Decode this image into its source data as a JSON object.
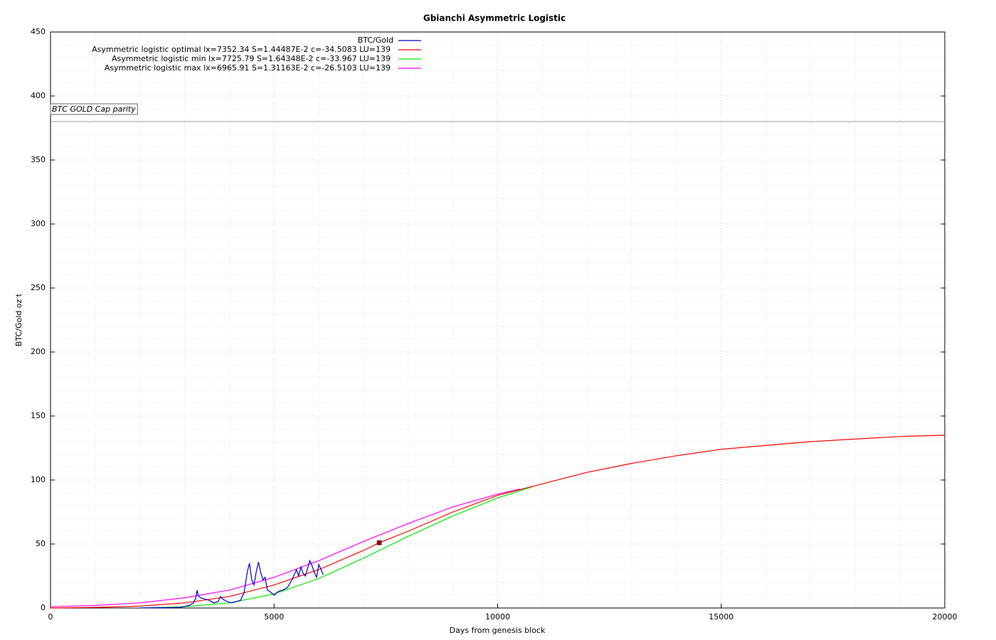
{
  "chart_data": {
    "type": "line",
    "title": "Gbianchi Asymmetric Logistic",
    "x_label": "Days from genesis block",
    "y_label": "BTC/Gold oz t",
    "xlim": [
      0,
      20000
    ],
    "ylim": [
      0,
      450
    ],
    "xticks": [
      0,
      5000,
      10000,
      15000,
      20000
    ],
    "yticks": [
      0,
      50,
      100,
      150,
      200,
      250,
      300,
      350,
      400,
      450
    ],
    "grid": true,
    "legend": "top",
    "series": [
      {
        "name": "BTC/Gold",
        "color": "#0000cc",
        "x": [
          2000,
          2500,
          2900,
          3100,
          3200,
          3250,
          3280,
          3300,
          3350,
          3450,
          3550,
          3650,
          3750,
          3800,
          3850,
          3950,
          4050,
          4150,
          4250,
          4330,
          4400,
          4450,
          4500,
          4550,
          4600,
          4650,
          4700,
          4750,
          4800,
          4850,
          4900,
          5000,
          5100,
          5200,
          5300,
          5400,
          5500,
          5550,
          5600,
          5650,
          5700,
          5800,
          5850,
          5900,
          5950,
          6000,
          6050,
          6100
        ],
        "values": [
          0.1,
          0.2,
          0.5,
          2,
          4,
          8,
          14,
          10,
          8,
          7,
          6,
          4,
          5,
          9,
          7,
          5,
          4,
          5,
          6,
          12,
          28,
          35,
          22,
          18,
          28,
          36,
          28,
          22,
          24,
          14,
          13,
          10,
          13,
          14,
          16,
          22,
          30,
          25,
          32,
          27,
          25,
          37,
          33,
          28,
          24,
          34,
          30,
          26
        ]
      },
      {
        "name": "Asymmetric logistic optimal lx=7352.34 S=1.44487E-2 c=-34.5083 LU=139",
        "color": "#ff0000",
        "x": [
          0,
          1000,
          2000,
          3000,
          4000,
          5000,
          6000,
          7000,
          7352,
          8000,
          9000,
          10000,
          11000,
          12000,
          13000,
          14000,
          15000,
          16000,
          17000,
          18000,
          19000,
          20000
        ],
        "values": [
          0,
          0.5,
          1.5,
          4,
          9,
          18,
          30,
          45,
          51,
          60,
          75,
          88,
          97,
          106,
          113,
          119,
          124,
          127,
          130,
          132,
          134,
          135
        ]
      },
      {
        "name": "Asymmetric logistic min lx=7725.79 S=1.64348E-2 c=-33.967 LU=139",
        "color": "#00ee00",
        "x": [
          2000,
          3000,
          4000,
          5000,
          6000,
          7000,
          8000,
          9000,
          10000,
          10800
        ],
        "values": [
          0,
          1,
          4,
          11,
          23,
          39,
          56,
          72,
          86,
          95
        ]
      },
      {
        "name": "Asymmetric logistic max lx=6965.91 S=1.31163E-2 c=-26.5103 LU=139",
        "color": "#ff00ff",
        "x": [
          0,
          1000,
          2000,
          3000,
          4000,
          5000,
          6000,
          7000,
          8000,
          9000,
          10000,
          10500
        ],
        "values": [
          1,
          2,
          4,
          8,
          14,
          24,
          37,
          52,
          66,
          79,
          89,
          93
        ]
      }
    ],
    "point": {
      "x": 7352,
      "y": 51,
      "color": "#a00000"
    },
    "annotation": {
      "text": "BTC GOLD Cap parity",
      "y": 380
    }
  }
}
